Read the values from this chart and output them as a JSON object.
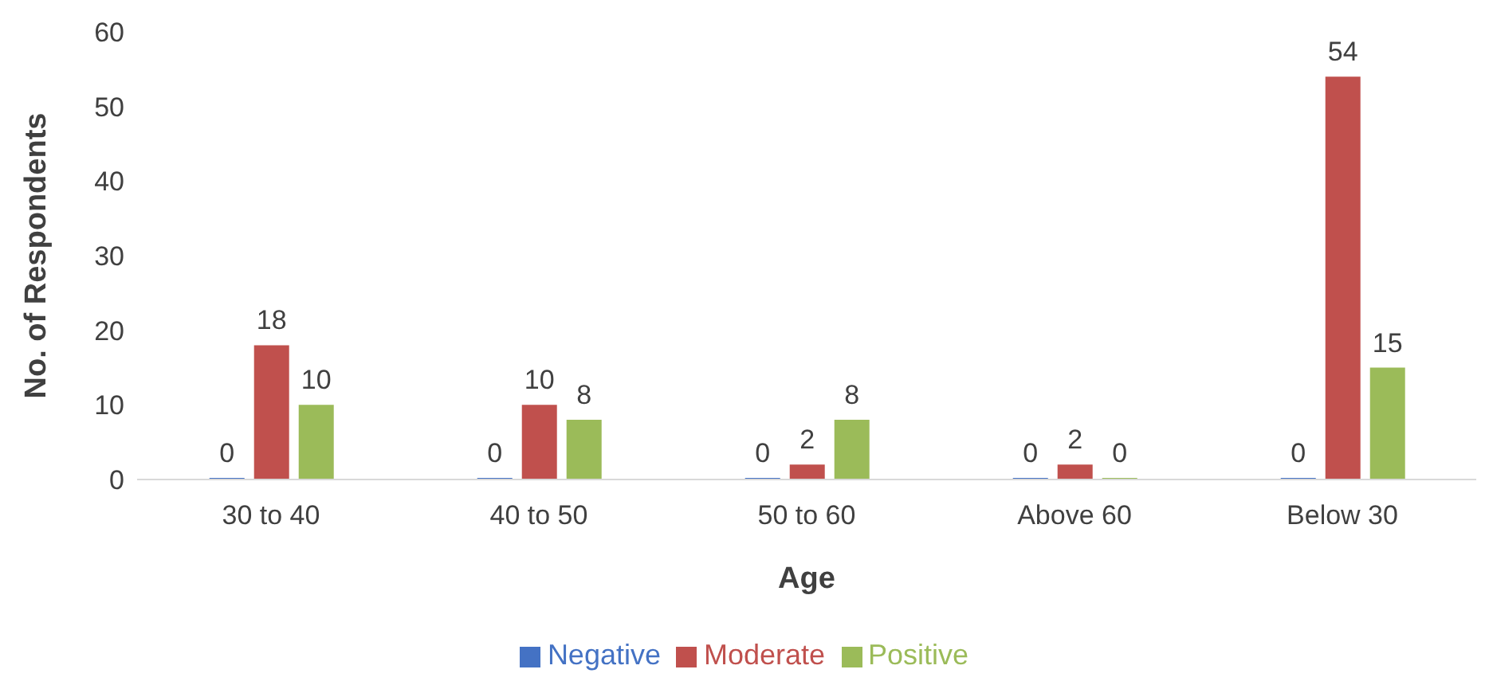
{
  "chart_data": {
    "type": "bar",
    "xlabel": "Age",
    "ylabel": "No. of Respondents",
    "categories": [
      "30 to 40",
      "40 to 50",
      "50 to 60",
      "Above 60",
      "Below 30"
    ],
    "series": [
      {
        "name": "Negative",
        "color": "#4472c4",
        "values": [
          0,
          0,
          0,
          0,
          0
        ]
      },
      {
        "name": "Moderate",
        "color": "#c0504d",
        "values": [
          18,
          10,
          2,
          2,
          54
        ]
      },
      {
        "name": "Positive",
        "color": "#9bbb59",
        "values": [
          10,
          8,
          8,
          0,
          15
        ]
      }
    ],
    "ylim": [
      0,
      60
    ],
    "yticks": [
      0,
      10,
      20,
      30,
      40,
      50,
      60
    ],
    "grid": false,
    "legend": "bottom",
    "data_labels": true
  }
}
